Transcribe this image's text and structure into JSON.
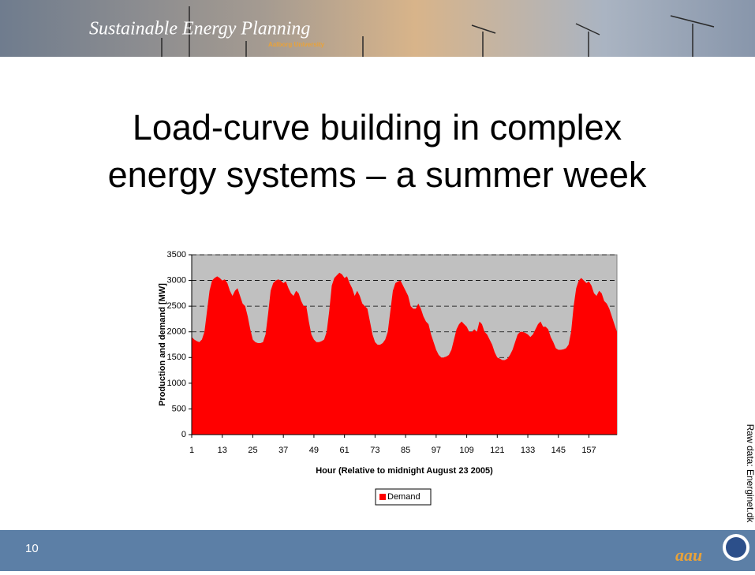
{
  "header": {
    "title": "Sustainable Energy Planning",
    "subtitle": "Aalborg University"
  },
  "slide": {
    "title_line1": "Load-curve building in complex",
    "title_line2": "energy systems – a summer week",
    "page_number": "10",
    "source_note": "Raw data: Energinet.dk",
    "logo_text": "aau"
  },
  "chart_data": {
    "type": "area",
    "x_label": "Hour (Relative to midnight August 23 2005)",
    "y_label": "Production and demand [MW]",
    "xlim": [
      1,
      168
    ],
    "xticks": [
      1,
      13,
      25,
      37,
      49,
      61,
      73,
      85,
      97,
      109,
      121,
      133,
      145,
      157
    ],
    "ylim": [
      0,
      3500
    ],
    "yticks": [
      0,
      500,
      1000,
      1500,
      2000,
      2500,
      3000,
      3500
    ],
    "grid": true,
    "legend": "bottom",
    "x": [
      1,
      2,
      3,
      4,
      5,
      6,
      7,
      8,
      9,
      10,
      11,
      12,
      13,
      14,
      15,
      16,
      17,
      18,
      19,
      20,
      21,
      22,
      23,
      24,
      25,
      26,
      27,
      28,
      29,
      30,
      31,
      32,
      33,
      34,
      35,
      36,
      37,
      38,
      39,
      40,
      41,
      42,
      43,
      44,
      45,
      46,
      47,
      48,
      49,
      50,
      51,
      52,
      53,
      54,
      55,
      56,
      57,
      58,
      59,
      60,
      61,
      62,
      63,
      64,
      65,
      66,
      67,
      68,
      69,
      70,
      71,
      72,
      73,
      74,
      75,
      76,
      77,
      78,
      79,
      80,
      81,
      82,
      83,
      84,
      85,
      86,
      87,
      88,
      89,
      90,
      91,
      92,
      93,
      94,
      95,
      96,
      97,
      98,
      99,
      100,
      101,
      102,
      103,
      104,
      105,
      106,
      107,
      108,
      109,
      110,
      111,
      112,
      113,
      114,
      115,
      116,
      117,
      118,
      119,
      120,
      121,
      122,
      123,
      124,
      125,
      126,
      127,
      128,
      129,
      130,
      131,
      132,
      133,
      134,
      135,
      136,
      137,
      138,
      139,
      140,
      141,
      142,
      143,
      144,
      145,
      146,
      147,
      148,
      149,
      150,
      151,
      152,
      153,
      154,
      155,
      156,
      157,
      158,
      159,
      160,
      161,
      162,
      163,
      164,
      165,
      166,
      167,
      168
    ],
    "series": [
      {
        "name": "Demand",
        "color": "#ff0000",
        "values": [
          1900,
          1850,
          1820,
          1800,
          1850,
          2000,
          2400,
          2800,
          3000,
          3050,
          3080,
          3050,
          3000,
          3020,
          2950,
          2800,
          2700,
          2800,
          2850,
          2700,
          2550,
          2500,
          2300,
          2050,
          1850,
          1800,
          1780,
          1780,
          1800,
          1950,
          2350,
          2800,
          2950,
          3000,
          3020,
          3000,
          2950,
          2980,
          2850,
          2750,
          2700,
          2800,
          2750,
          2600,
          2500,
          2500,
          2200,
          1950,
          1850,
          1800,
          1800,
          1820,
          1850,
          2000,
          2400,
          2900,
          3050,
          3100,
          3150,
          3120,
          3050,
          3080,
          2950,
          2850,
          2700,
          2800,
          2700,
          2550,
          2500,
          2450,
          2200,
          1950,
          1800,
          1750,
          1750,
          1780,
          1850,
          2000,
          2400,
          2800,
          2950,
          2980,
          3000,
          2900,
          2800,
          2700,
          2500,
          2450,
          2450,
          2550,
          2450,
          2300,
          2200,
          2150,
          1950,
          1800,
          1650,
          1550,
          1500,
          1500,
          1520,
          1550,
          1650,
          1850,
          2050,
          2150,
          2200,
          2150,
          2100,
          2000,
          2000,
          2050,
          2000,
          2200,
          2150,
          2000,
          1950,
          1850,
          1750,
          1600,
          1500,
          1480,
          1450,
          1450,
          1480,
          1550,
          1650,
          1800,
          1950,
          2000,
          2000,
          1980,
          1950,
          1900,
          1950,
          2050,
          2150,
          2200,
          2100,
          2100,
          2050,
          1900,
          1800,
          1680,
          1650,
          1650,
          1660,
          1680,
          1750,
          2000,
          2500,
          2850,
          3000,
          3050,
          3000,
          2950,
          2980,
          2900,
          2750,
          2700,
          2800,
          2750,
          2600,
          2550,
          2450,
          2300,
          2150,
          2000
        ]
      }
    ]
  }
}
